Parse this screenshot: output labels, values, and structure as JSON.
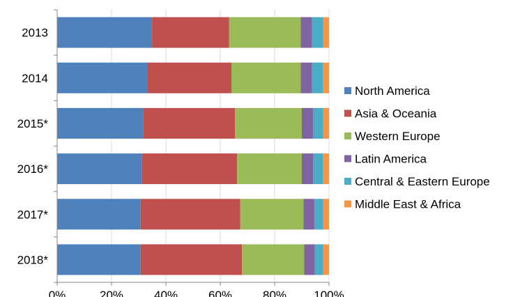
{
  "chart_data": {
    "type": "bar",
    "orientation": "horizontal",
    "stacked": "percent",
    "categories": [
      "2013",
      "2014",
      "2015*",
      "2016*",
      "2017*",
      "2018*"
    ],
    "series": [
      {
        "name": "North America",
        "values": [
          34.9,
          33.1,
          31.6,
          31.1,
          30.7,
          30.7
        ]
      },
      {
        "name": "Asia & Oceania",
        "values": [
          28.3,
          31.0,
          33.8,
          35.1,
          36.6,
          37.3
        ]
      },
      {
        "name": "Western Europe",
        "values": [
          26.4,
          25.5,
          24.6,
          23.8,
          23.3,
          22.9
        ]
      },
      {
        "name": "Latin America",
        "values": [
          4.1,
          4.2,
          4.1,
          4.1,
          4.0,
          3.9
        ]
      },
      {
        "name": "Central & Eastern Europe",
        "values": [
          4.2,
          4.0,
          3.8,
          3.6,
          3.3,
          3.1
        ]
      },
      {
        "name": "Middle East & Africa",
        "values": [
          2.1,
          2.2,
          2.1,
          2.3,
          2.1,
          2.1
        ]
      }
    ],
    "colors": [
      "#4F81BD",
      "#C0504D",
      "#9BBB59",
      "#8064A2",
      "#4BACC6",
      "#F79646"
    ],
    "xlim": [
      0,
      100
    ],
    "x_ticks": [
      "0%",
      "20%",
      "40%",
      "60%",
      "80%",
      "100%"
    ],
    "grid": "vertical",
    "legend_position": "right",
    "title": "",
    "xlabel": "",
    "ylabel": ""
  }
}
